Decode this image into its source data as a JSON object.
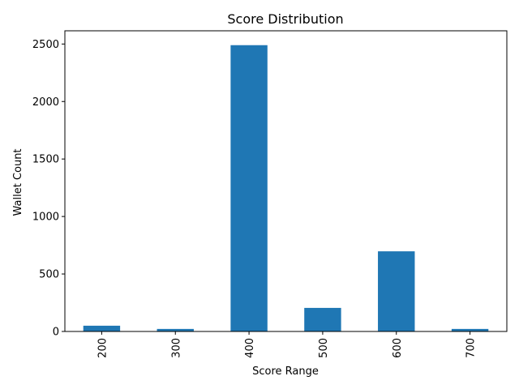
{
  "chart_data": {
    "type": "bar",
    "title": "Score Distribution",
    "xlabel": "Score Range",
    "ylabel": "Wallet Count",
    "categories": [
      "200",
      "300",
      "400",
      "500",
      "600",
      "700"
    ],
    "values": [
      50,
      22,
      2490,
      205,
      697,
      22
    ],
    "ylim": [
      0,
      2615
    ],
    "yticks": [
      0,
      500,
      1000,
      1500,
      2000,
      2500
    ],
    "bar_color": "#1f77b4",
    "grid": false,
    "legend": "none",
    "xtick_rotation": "vertical"
  }
}
